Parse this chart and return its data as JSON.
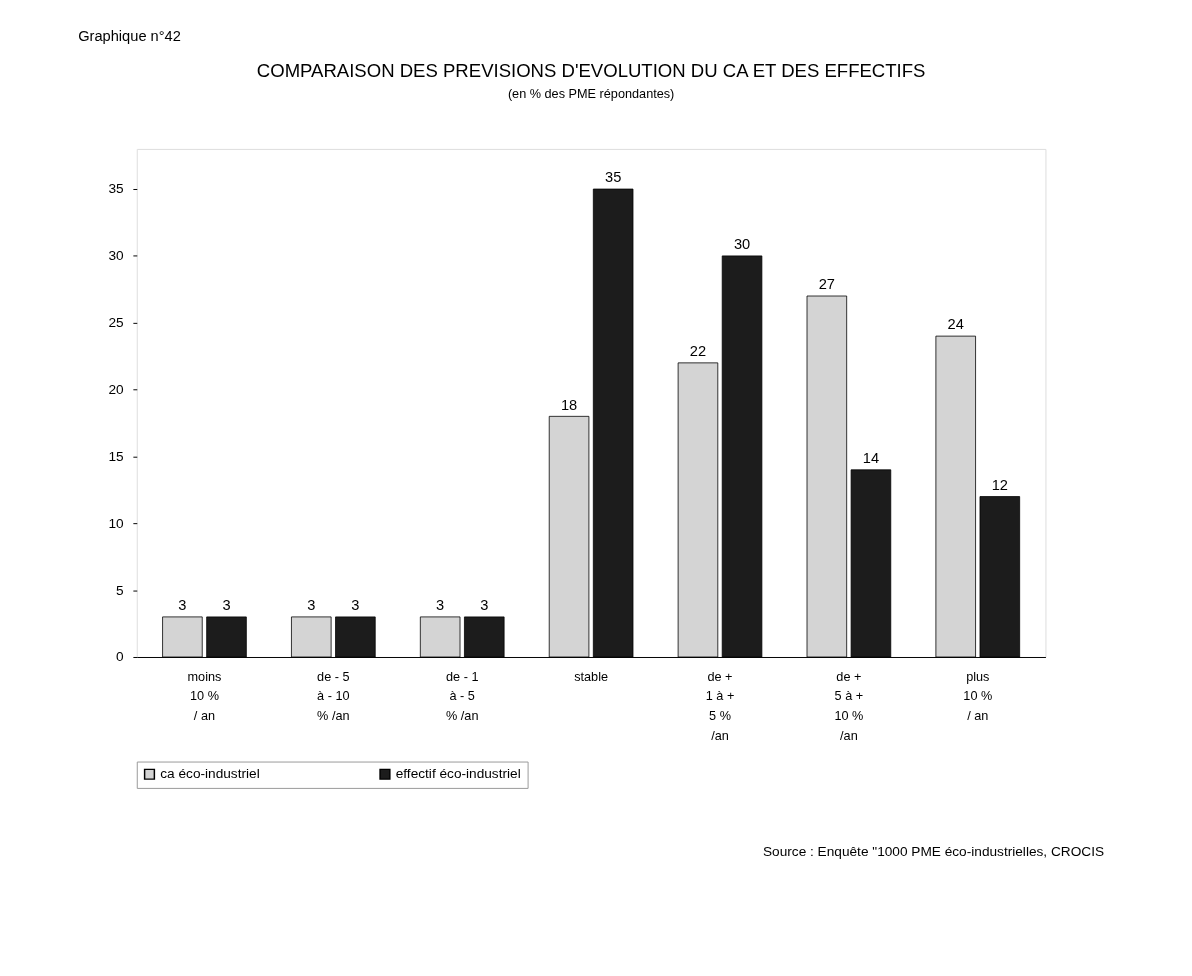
{
  "chart_data": {
    "type": "bar",
    "title": "COMPARAISON DES PREVISIONS D'EVOLUTION DU CA ET DES EFFECTIFS",
    "subtitle": "(en % des PME répondantes)",
    "categories": [
      "moins\n10 %\n/ an",
      "de - 5\nà - 10\n% /an",
      "de - 1\nà - 5\n% /an",
      "stable",
      "de +\n1 à +\n5 %\n/an",
      "de +\n5 à +\n10 %\n/an",
      "plus\n10 %\n/ an"
    ],
    "series": [
      {
        "name": "ca éco-industriel",
        "color": "#d4d4d4",
        "values": [
          3,
          3,
          3,
          18,
          22,
          27,
          24
        ]
      },
      {
        "name": "effectif éco-industriel",
        "color": "#1c1c1c",
        "values": [
          3,
          3,
          3,
          35,
          30,
          14,
          12
        ]
      }
    ],
    "ylim": [
      0,
      38
    ],
    "yticks": [
      0,
      5,
      10,
      15,
      20,
      25,
      30,
      35
    ],
    "grid": false,
    "legend": "bottom",
    "data_labels": true,
    "annotations": [
      "Graphique n°42",
      "Source : Enquête \"1000 PME éco-industrielles, CROCIS"
    ]
  }
}
